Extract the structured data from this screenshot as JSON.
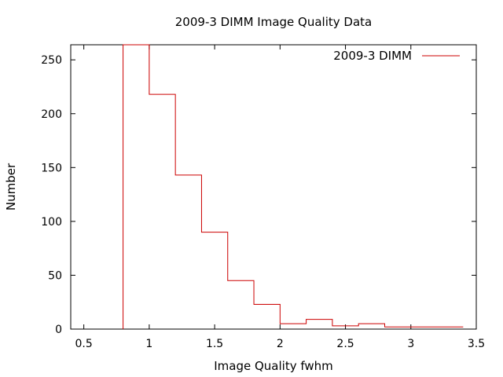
{
  "chart_data": {
    "type": "histogram-step",
    "title": "2009-3 DIMM Image Quality Data",
    "xlabel": "Image Quality fwhm",
    "ylabel": "Number",
    "xlim": [
      0.4,
      3.5
    ],
    "ylim": [
      0,
      264
    ],
    "xticks": [
      0.5,
      1,
      1.5,
      2,
      2.5,
      3,
      3.5
    ],
    "xtick_labels": [
      "0.5",
      "1",
      "1.5",
      "2",
      "2.5",
      "3",
      "3.5"
    ],
    "yticks": [
      0,
      50,
      100,
      150,
      200,
      250
    ],
    "ytick_labels": [
      "0",
      "50",
      "100",
      "150",
      "200",
      "250"
    ],
    "legend_position": "top-right",
    "series": [
      {
        "name": "2009-3 DIMM",
        "color": "#cc0000",
        "bin_edges": [
          0.8,
          1.0,
          1.2,
          1.4,
          1.6,
          1.8,
          2.0,
          2.2,
          2.4,
          2.6,
          2.8,
          3.0,
          3.2,
          3.4
        ],
        "counts": [
          264,
          218,
          143,
          90,
          45,
          23,
          5,
          9,
          3,
          5,
          2,
          2,
          2
        ]
      }
    ]
  }
}
